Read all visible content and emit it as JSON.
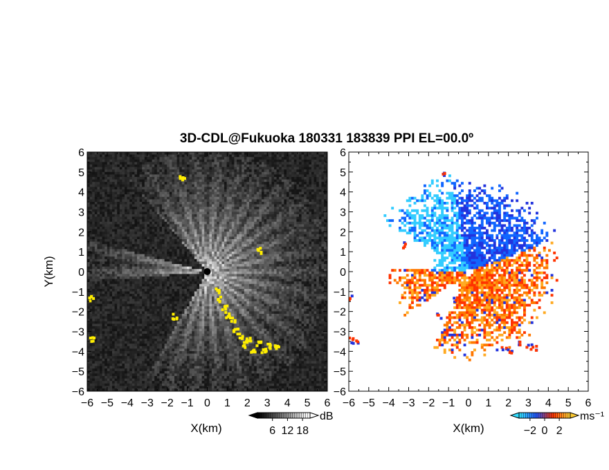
{
  "chart_data": [
    {
      "type": "heatmap",
      "title": "3D-CDL@Fukuoka 180331 183839 PPI EL=00.0º",
      "panel": "reflectivity",
      "xlabel": "X(km)",
      "ylabel": "Y(km)",
      "xlim": [
        -6,
        6
      ],
      "ylim": [
        -6,
        6
      ],
      "xticks": [
        "−6",
        "−5",
        "−4",
        "−3",
        "−2",
        "−1",
        "0",
        "1",
        "2",
        "3",
        "4",
        "5",
        "6"
      ],
      "yticks": [
        "6",
        "5",
        "4",
        "3",
        "2",
        "1",
        "0",
        "−1",
        "−2",
        "−3",
        "−4",
        "−5",
        "−6"
      ],
      "colorbar": {
        "unit": "dB",
        "tick_labels": [
          "6",
          "12",
          "18"
        ],
        "tick_values": [
          6,
          12,
          18
        ],
        "range": [
          0,
          21
        ],
        "colors": [
          "#000000",
          "#ffffff"
        ]
      },
      "background_color": "#1a1a1a",
      "highlight_color": "#ffee00",
      "blocked_sectors_deg": [
        [
          130,
          165
        ],
        [
          185,
          240
        ]
      ]
    },
    {
      "type": "heatmap",
      "panel": "doppler_velocity",
      "xlabel": "X(km)",
      "ylabel": "",
      "xlim": [
        -6,
        6
      ],
      "ylim": [
        -6,
        6
      ],
      "xticks": [
        "−6",
        "−5",
        "−4",
        "−3",
        "−2",
        "−1",
        "0",
        "1",
        "2",
        "3",
        "4",
        "5",
        "6"
      ],
      "colorbar": {
        "unit": "ms⁻¹",
        "tick_labels": [
          "−2",
          "0",
          "2"
        ],
        "tick_values": [
          -2,
          0,
          2
        ],
        "range": [
          -3.5,
          3.5
        ],
        "colors": [
          "#33ddff",
          "#2255ff",
          "#ff3300",
          "#ffcc33"
        ]
      },
      "approaching_colors": [
        "#33ccff",
        "#1166ff",
        "#2233dd"
      ],
      "receding_colors": [
        "#ff3300",
        "#ff7700",
        "#ffaa22"
      ]
    }
  ]
}
